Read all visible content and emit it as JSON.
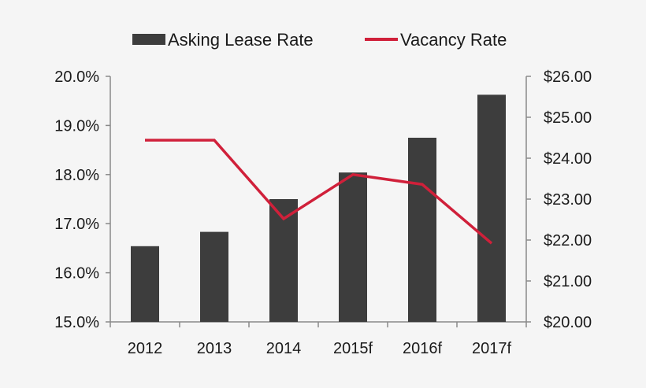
{
  "chart_data": {
    "type": "bar",
    "categories": [
      "2012",
      "2013",
      "2014",
      "2015f",
      "2016f",
      "2017f"
    ],
    "series": [
      {
        "name": "Asking Lease Rate",
        "type": "bar",
        "axis": "right",
        "color": "#3d3d3d",
        "values": [
          21.85,
          22.2,
          23.0,
          23.65,
          24.5,
          25.55
        ]
      },
      {
        "name": "Vacancy Rate",
        "type": "line",
        "axis": "left",
        "color": "#d0203a",
        "values": [
          18.7,
          18.7,
          17.1,
          18.0,
          17.8,
          16.6
        ]
      }
    ],
    "y_left": {
      "ylim": [
        15.0,
        20.0
      ],
      "ticks": [
        "20.0%",
        "19.0%",
        "18.0%",
        "17.0%",
        "16.0%",
        "15.0%"
      ]
    },
    "y_right": {
      "ylim": [
        20.0,
        26.0
      ],
      "ticks": [
        "$26.00",
        "$25.00",
        "$24.00",
        "$23.00",
        "$22.00",
        "$21.00",
        "$20.00"
      ]
    },
    "legend": {
      "position": "top"
    },
    "grid": false
  }
}
